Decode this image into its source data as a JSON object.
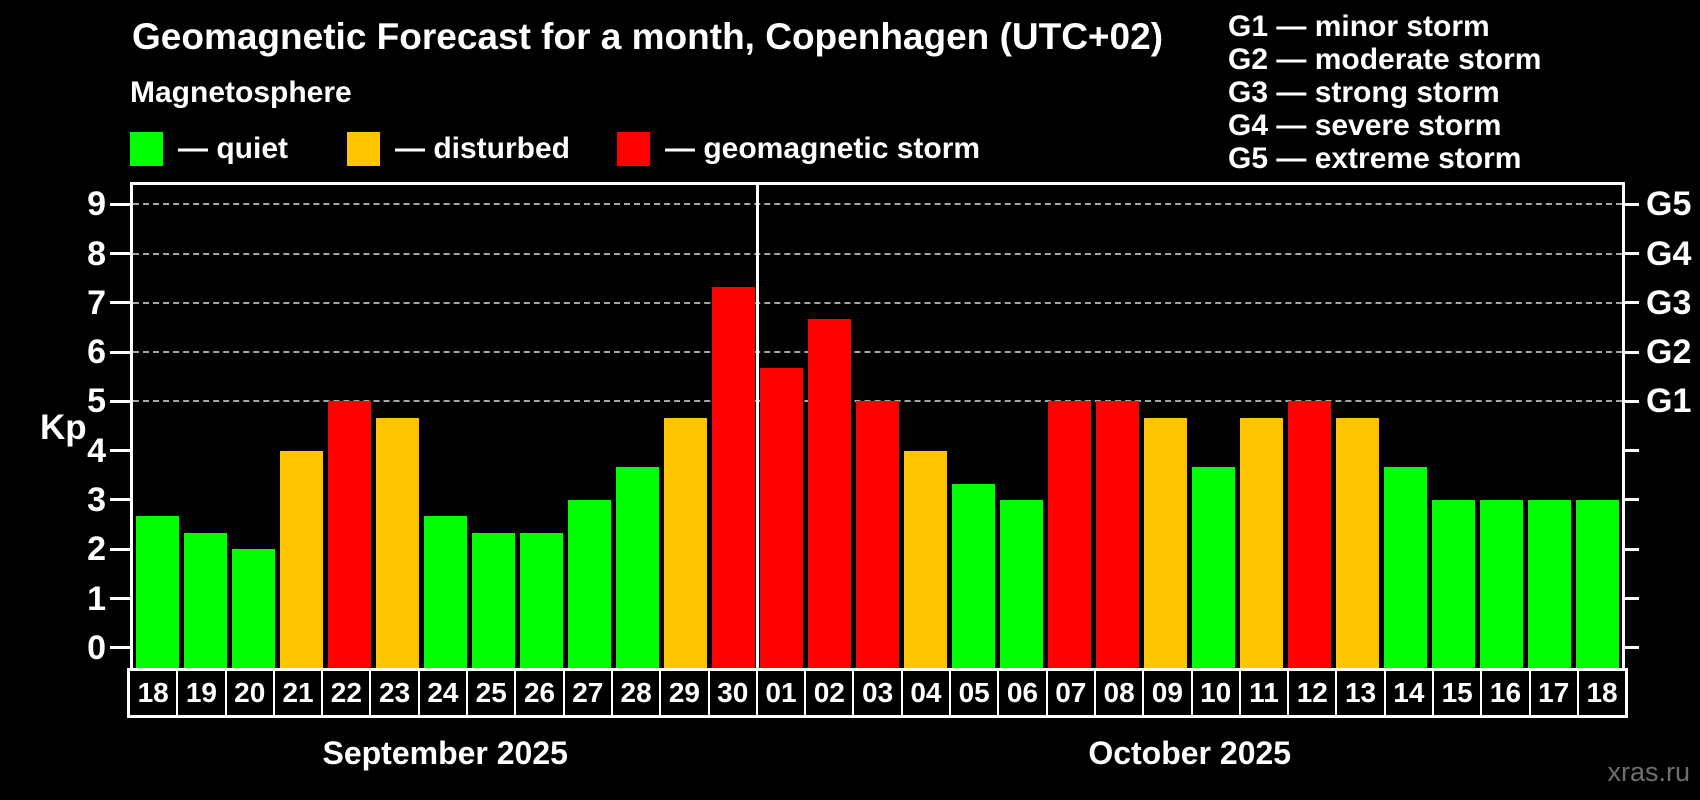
{
  "title": "Geomagnetic Forecast for a month, Copenhagen (UTC+02)",
  "subtitle": "Magnetosphere",
  "watermark": "xras.ru",
  "colors": {
    "quiet": "#00ff00",
    "disturbed": "#ffc400",
    "storm": "#ff0000",
    "grid": "#a6a6a6",
    "axis": "#ffffff",
    "watermark_text": "#6f6f6f"
  },
  "legend": [
    {
      "key": "quiet",
      "label": "— quiet",
      "color": "#00ff00"
    },
    {
      "key": "disturbed",
      "label": "— disturbed",
      "color": "#ffc400"
    },
    {
      "key": "storm",
      "label": "— geomagnetic storm",
      "color": "#ff0000"
    }
  ],
  "g_legend": [
    "G1 — minor storm",
    "G2 — moderate storm",
    "G3 — strong storm",
    "G4 — severe storm",
    "G5 — extreme storm"
  ],
  "chart_data": {
    "type": "bar",
    "ylabel": "Kp",
    "ylim": [
      0,
      9
    ],
    "yticks": [
      0,
      1,
      2,
      3,
      4,
      5,
      6,
      7,
      8,
      9
    ],
    "gridlines_at": [
      5,
      6,
      7,
      8,
      9
    ],
    "grid_style": "dashed",
    "right_axis_labels": [
      {
        "kp": 5,
        "label": "G1"
      },
      {
        "kp": 6,
        "label": "G2"
      },
      {
        "kp": 7,
        "label": "G3"
      },
      {
        "kp": 8,
        "label": "G4"
      },
      {
        "kp": 9,
        "label": "G5"
      }
    ],
    "months": [
      {
        "label": "September 2025",
        "days": [
          {
            "date": "18",
            "value": 2.67,
            "level": "quiet"
          },
          {
            "date": "19",
            "value": 2.33,
            "level": "quiet"
          },
          {
            "date": "20",
            "value": 2.0,
            "level": "quiet"
          },
          {
            "date": "21",
            "value": 4.0,
            "level": "disturbed"
          },
          {
            "date": "22",
            "value": 5.0,
            "level": "storm"
          },
          {
            "date": "23",
            "value": 4.67,
            "level": "disturbed"
          },
          {
            "date": "24",
            "value": 2.67,
            "level": "quiet"
          },
          {
            "date": "25",
            "value": 2.33,
            "level": "quiet"
          },
          {
            "date": "26",
            "value": 2.33,
            "level": "quiet"
          },
          {
            "date": "27",
            "value": 3.0,
            "level": "quiet"
          },
          {
            "date": "28",
            "value": 3.67,
            "level": "quiet"
          },
          {
            "date": "29",
            "value": 4.67,
            "level": "disturbed"
          },
          {
            "date": "30",
            "value": 7.33,
            "level": "storm"
          }
        ]
      },
      {
        "label": "October 2025",
        "days": [
          {
            "date": "01",
            "value": 5.67,
            "level": "storm"
          },
          {
            "date": "02",
            "value": 6.67,
            "level": "storm"
          },
          {
            "date": "03",
            "value": 5.0,
            "level": "storm"
          },
          {
            "date": "04",
            "value": 4.0,
            "level": "disturbed"
          },
          {
            "date": "05",
            "value": 3.33,
            "level": "quiet"
          },
          {
            "date": "06",
            "value": 3.0,
            "level": "quiet"
          },
          {
            "date": "07",
            "value": 5.0,
            "level": "storm"
          },
          {
            "date": "08",
            "value": 5.0,
            "level": "storm"
          },
          {
            "date": "09",
            "value": 4.67,
            "level": "disturbed"
          },
          {
            "date": "10",
            "value": 3.67,
            "level": "quiet"
          },
          {
            "date": "11",
            "value": 4.67,
            "level": "disturbed"
          },
          {
            "date": "12",
            "value": 5.0,
            "level": "storm"
          },
          {
            "date": "13",
            "value": 4.67,
            "level": "disturbed"
          },
          {
            "date": "14",
            "value": 3.67,
            "level": "quiet"
          },
          {
            "date": "15",
            "value": 3.0,
            "level": "quiet"
          },
          {
            "date": "16",
            "value": 3.0,
            "level": "quiet"
          },
          {
            "date": "17",
            "value": 3.0,
            "level": "quiet"
          },
          {
            "date": "18",
            "value": 3.0,
            "level": "quiet"
          }
        ]
      }
    ]
  }
}
